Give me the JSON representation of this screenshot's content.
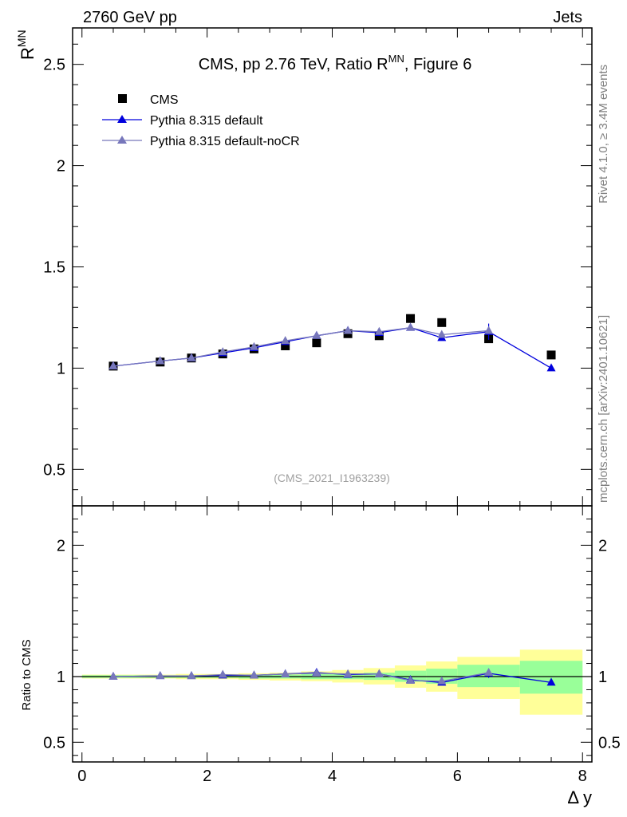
{
  "header": {
    "left": "2760 GeV pp",
    "right": "Jets",
    "side_top": "Rivet 4.1.0, ≥ 3.4M events",
    "side_bottom": "mcplots.cern.ch [arXiv:2401.10621]"
  },
  "chart_data": [
    {
      "type": "scatter",
      "panel": "main",
      "title": "CMS, pp 2.76 TeV, Ratio R",
      "title_sup": "MN",
      "title_suffix": ", Figure 6",
      "ylabel": "R",
      "ylabel_sup": "MN",
      "watermark": "(CMS_2021_I1963239)",
      "ylim": [
        0.32,
        2.68
      ],
      "xlim": [
        -0.15,
        8.15
      ],
      "yticks": [
        0.5,
        1,
        1.5,
        2,
        2.5
      ],
      "ytick_labels": [
        "0.5",
        "1",
        "1.5",
        "2",
        "2.5"
      ],
      "legend": [
        "CMS",
        "Pythia 8.315 default",
        "Pythia 8.315 default-noCR"
      ],
      "colors": {
        "data": "#000000",
        "default": "#0000dd",
        "nocr": "#7777bb"
      },
      "x": [
        0.5,
        1.25,
        1.75,
        2.25,
        2.75,
        3.25,
        3.75,
        4.25,
        4.75,
        5.25,
        5.75,
        6.5,
        7.5
      ],
      "series": [
        {
          "name": "CMS",
          "values": [
            1.01,
            1.03,
            1.05,
            1.07,
            1.095,
            1.11,
            1.125,
            1.17,
            1.16,
            1.245,
            1.225,
            1.145,
            1.065
          ]
        },
        {
          "name": "Pythia 8.315 default",
          "values": [
            1.01,
            1.035,
            1.05,
            1.075,
            1.1,
            1.13,
            1.16,
            1.185,
            1.175,
            1.2,
            1.15,
            1.18,
            1.0
          ],
          "errors": [
            0,
            0,
            0,
            0,
            0,
            0,
            0,
            0,
            0,
            0,
            0,
            0.04,
            0
          ]
        },
        {
          "name": "Pythia 8.315 default-noCR",
          "values": [
            1.01,
            1.035,
            1.05,
            1.08,
            1.105,
            1.135,
            1.16,
            1.185,
            1.18,
            1.2,
            1.165,
            1.185,
            null
          ]
        }
      ]
    },
    {
      "type": "scatter",
      "panel": "ratio",
      "ylabel": "Ratio to CMS",
      "xlabel": "Δ y",
      "ylim": [
        0.35,
        2.3
      ],
      "xlim": [
        -0.15,
        8.15
      ],
      "yticks": [
        0.5,
        1,
        2
      ],
      "ytick_labels": [
        "0.5",
        "1",
        "2"
      ],
      "xticks": [
        0,
        2,
        4,
        6,
        8
      ],
      "xtick_labels": [
        "0",
        "2",
        "4",
        "6",
        "8"
      ],
      "bands": {
        "edges": [
          0,
          1,
          1.5,
          2,
          2.5,
          3,
          3.5,
          4,
          4.5,
          5,
          5.5,
          6,
          7,
          8
        ],
        "green_lo": [
          0.99,
          0.99,
          0.99,
          0.99,
          0.985,
          0.985,
          0.98,
          0.98,
          0.975,
          0.96,
          0.945,
          0.92,
          0.87
        ],
        "green_hi": [
          1.01,
          1.01,
          1.01,
          1.01,
          1.015,
          1.015,
          1.02,
          1.025,
          1.03,
          1.045,
          1.06,
          1.09,
          1.12
        ],
        "yellow_lo": [
          0.985,
          0.985,
          0.98,
          0.98,
          0.975,
          0.97,
          0.965,
          0.955,
          0.94,
          0.915,
          0.885,
          0.83,
          0.71
        ],
        "yellow_hi": [
          1.015,
          1.015,
          1.02,
          1.02,
          1.025,
          1.03,
          1.04,
          1.05,
          1.065,
          1.085,
          1.115,
          1.15,
          1.205
        ]
      },
      "x": [
        0.5,
        1.25,
        1.75,
        2.25,
        2.75,
        3.25,
        3.75,
        4.25,
        4.75,
        5.25,
        5.75,
        6.5,
        7.5
      ],
      "series": [
        {
          "name": "Pythia 8.315 default",
          "values": [
            1.0,
            1.005,
            1.005,
            1.01,
            1.01,
            1.02,
            1.03,
            1.015,
            1.02,
            0.975,
            0.955,
            1.025,
            0.955
          ],
          "errors": [
            0,
            0,
            0,
            0,
            0,
            0,
            0,
            0,
            0,
            0,
            0,
            0.035,
            0
          ]
        },
        {
          "name": "Pythia 8.315 default-noCR",
          "values": [
            1.0,
            1.005,
            1.005,
            1.015,
            1.01,
            1.02,
            1.025,
            1.02,
            1.02,
            0.97,
            0.965,
            1.03,
            null
          ]
        }
      ]
    }
  ]
}
